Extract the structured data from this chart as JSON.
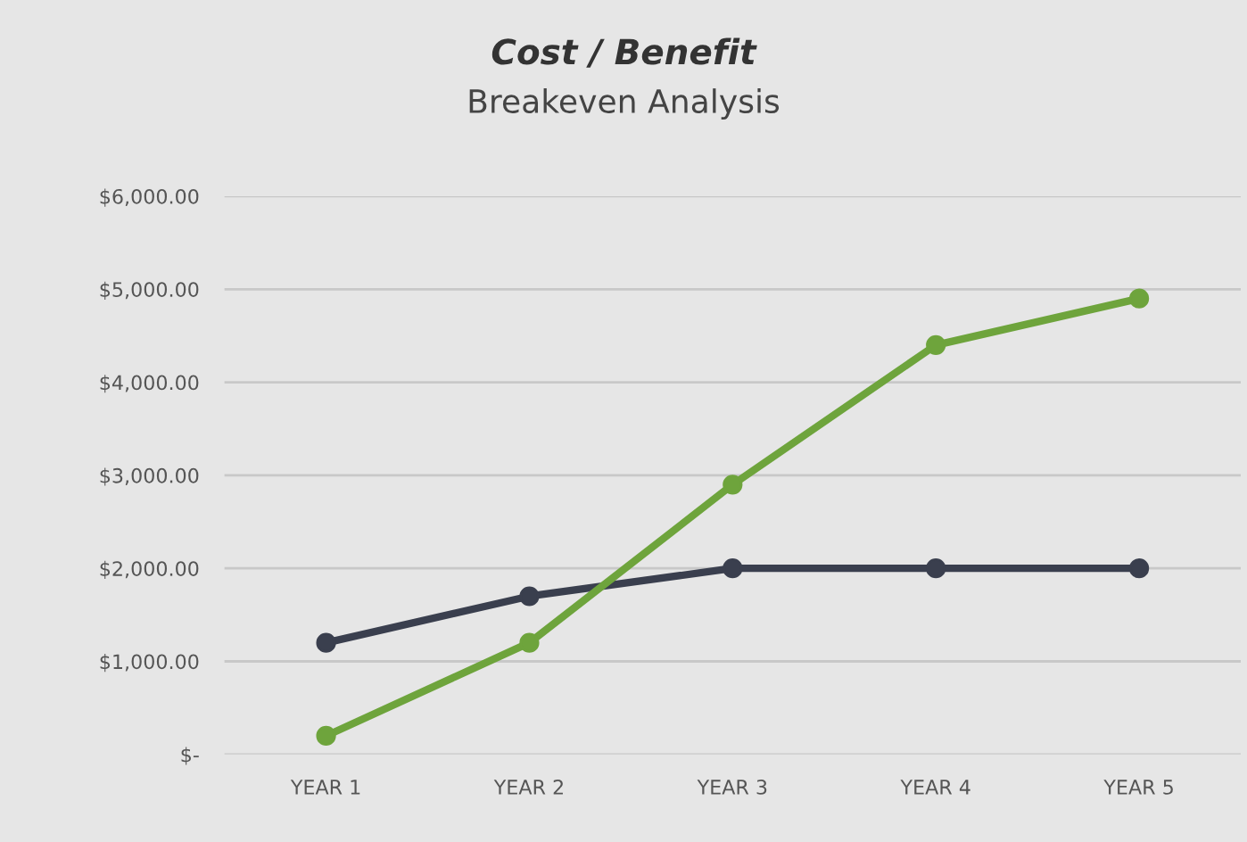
{
  "chart_data": {
    "type": "line",
    "title": "Cost / Benefit",
    "subtitle": "Breakeven Analysis",
    "categories": [
      "YEAR 1",
      "YEAR 2",
      "YEAR 3",
      "YEAR 4",
      "YEAR 5"
    ],
    "series": [
      {
        "color": "#3a3f4e",
        "values": [
          1200,
          1700,
          2000,
          2000,
          2000
        ]
      },
      {
        "color": "#6ea43c",
        "values": [
          200,
          1200,
          2900,
          4400,
          4900
        ]
      }
    ],
    "ylim": [
      0,
      6000
    ],
    "yticks": [
      {
        "value": 0,
        "label": "$-"
      },
      {
        "value": 1000,
        "label": "$1,000.00"
      },
      {
        "value": 2000,
        "label": "$2,000.00"
      },
      {
        "value": 3000,
        "label": "$3,000.00"
      },
      {
        "value": 4000,
        "label": "$4,000.00"
      },
      {
        "value": 5000,
        "label": "$5,000.00"
      },
      {
        "value": 6000,
        "label": "$6,000.00"
      }
    ],
    "grid": "y",
    "marker": "circle",
    "line_style": "solid",
    "legend": false
  }
}
